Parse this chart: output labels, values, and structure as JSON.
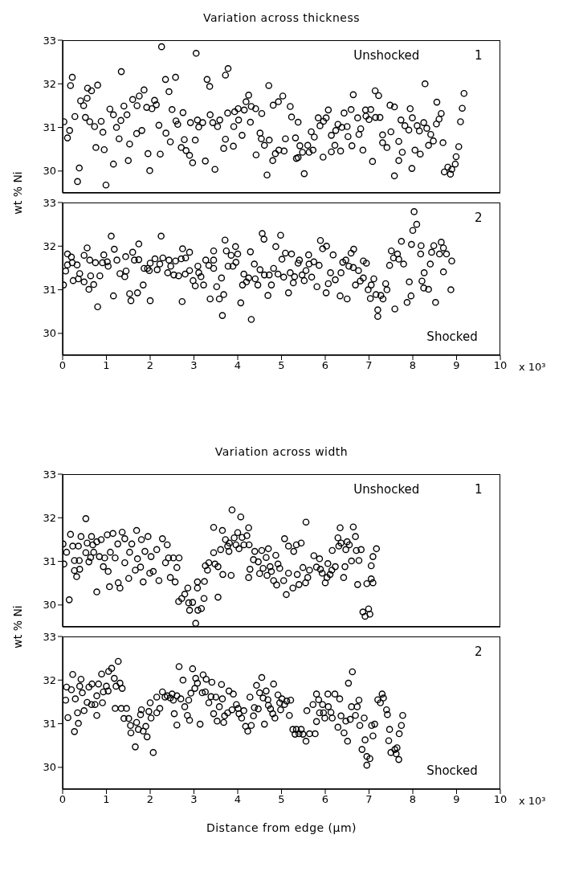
{
  "chart_data": [
    {
      "type": "scatter",
      "title": "Variation across thickness",
      "ylabel": "wt % Ni",
      "annotations": [
        "Unshocked",
        "1"
      ],
      "color": "#000000",
      "marker": "circle",
      "xlim": [
        0,
        10
      ],
      "ylim": [
        29.5,
        33
      ],
      "yticks": [
        30,
        31,
        32,
        33
      ],
      "tick_labels": "y",
      "x": [
        0.03,
        0.11,
        0.16,
        0.18,
        0.28,
        0.38,
        0.34,
        0.41,
        0.48,
        0.56,
        0.57,
        0.66,
        0.52,
        0.62,
        0.73,
        0.76,
        0.8,
        0.88,
        0.92,
        0.95,
        0.99,
        1.08,
        1.16,
        1.16,
        1.23,
        1.29,
        1.33,
        1.4,
        1.47,
        1.5,
        1.53,
        1.6,
        1.69,
        1.7,
        1.75,
        1.81,
        1.86,
        1.92,
        1.95,
        1.99,
        2.04,
        2.1,
        2.14,
        2.2,
        2.23,
        2.36,
        2.43,
        2.46,
        2.5,
        2.59,
        2.63,
        2.71,
        2.75,
        2.78,
        2.82,
        2.9,
        2.92,
        2.97,
        3.03,
        3.08,
        3.11,
        3.2,
        3.26,
        3.37,
        3.36,
        3.43,
        3.48,
        3.54,
        3.59,
        3.68,
        3.72,
        3.77,
        3.9,
        3.91,
        3.93,
        4.01,
        4.02,
        4.1,
        4.15,
        4.19,
        4.25,
        4.29,
        4.31,
        4.41,
        4.42,
        4.51,
        4.54,
        4.55,
        4.61,
        4.67,
        4.71,
        4.72,
        4.8,
        4.81,
        4.86,
        4.93,
        4.94,
        5.03,
        5.06,
        5.09,
        5.2,
        5.23,
        5.32,
        5.34,
        5.38,
        5.38,
        5.42,
        5.48,
        5.52,
        5.6,
        5.63,
        5.68,
        5.72,
        5.75,
        5.84,
        5.88,
        5.95,
        5.96,
        6.02,
        6.07,
        6.14,
        6.14,
        6.22,
        6.24,
        6.29,
        6.35,
        6.38,
        6.43,
        6.5,
        6.52,
        6.59,
        6.61,
        6.64,
        6.74,
        6.77,
        6.81,
        6.86,
        6.92,
        6.93,
        7.0,
        7.04,
        7.08,
        7.14,
        7.15,
        7.22,
        7.25,
        7.31,
        7.31,
        7.41,
        7.5,
        7.48,
        7.58,
        7.58,
        7.68,
        7.68,
        7.73,
        7.76,
        7.82,
        7.91,
        7.94,
        7.98,
        7.99,
        8.05,
        8.1,
        8.15,
        8.17,
        8.25,
        8.32,
        8.36,
        8.41,
        8.47,
        8.54,
        8.55,
        8.6,
        8.65,
        8.69,
        8.72,
        8.8,
        8.86,
        8.89,
        8.97,
        8.99,
        9.05,
        9.09,
        9.13,
        9.17,
        8.28,
        0.22,
        1.34,
        2.26,
        2.35,
        2.58,
        3.05,
        3.3,
        3.72,
        3.78
      ],
      "values": [
        31.13,
        30.76,
        30.93,
        31.96,
        31.25,
        30.07,
        29.76,
        31.61,
        31.5,
        31.67,
        31.9,
        31.84,
        31.23,
        31.13,
        31.02,
        30.54,
        31.97,
        31.14,
        30.89,
        30.49,
        29.68,
        31.42,
        31.29,
        30.16,
        31.0,
        30.74,
        31.16,
        31.49,
        31.29,
        30.24,
        30.62,
        31.64,
        30.86,
        31.5,
        31.72,
        30.93,
        31.86,
        31.46,
        30.4,
        30.01,
        31.43,
        31.62,
        31.52,
        31.05,
        30.39,
        30.87,
        31.82,
        30.67,
        31.41,
        31.15,
        31.07,
        30.54,
        31.34,
        30.72,
        30.47,
        30.36,
        31.11,
        30.19,
        30.71,
        31.17,
        31.01,
        31.11,
        30.23,
        31.29,
        31.94,
        31.11,
        30.04,
        31.02,
        31.17,
        30.52,
        30.73,
        31.33,
        30.57,
        31.02,
        31.36,
        31.43,
        31.17,
        30.82,
        31.4,
        31.59,
        31.74,
        31.12,
        31.48,
        31.43,
        30.37,
        30.87,
        30.74,
        31.32,
        30.59,
        29.91,
        31.96,
        30.71,
        30.24,
        31.51,
        30.4,
        31.59,
        30.48,
        31.72,
        30.46,
        30.74,
        31.48,
        31.24,
        30.76,
        30.29,
        31.12,
        30.31,
        30.58,
        30.43,
        29.94,
        30.59,
        30.43,
        30.9,
        30.48,
        30.78,
        31.22,
        31.04,
        30.32,
        31.14,
        31.22,
        31.4,
        30.82,
        30.44,
        30.59,
        30.93,
        31.07,
        30.46,
        31.0,
        31.33,
        31.02,
        30.79,
        31.41,
        30.58,
        31.75,
        31.22,
        30.84,
        30.97,
        30.48,
        31.4,
        31.26,
        31.18,
        31.41,
        30.22,
        31.84,
        31.23,
        31.73,
        31.23,
        30.83,
        30.65,
        30.54,
        30.9,
        31.51,
        31.47,
        29.89,
        30.68,
        30.24,
        31.17,
        30.43,
        31.04,
        30.94,
        31.43,
        30.06,
        31.22,
        30.48,
        31.04,
        30.92,
        30.39,
        31.11,
        30.98,
        30.59,
        30.84,
        30.69,
        31.08,
        31.58,
        31.19,
        31.32,
        30.65,
        29.98,
        30.09,
        29.93,
        30.04,
        30.16,
        30.33,
        30.56,
        31.13,
        31.44,
        31.78,
        32.0,
        32.15,
        32.28,
        32.85,
        32.1,
        32.15,
        32.7,
        32.1,
        32.2,
        32.35
      ]
    },
    {
      "type": "scatter",
      "annotations": [
        "2",
        "Shocked",
        "x 10³"
      ],
      "color": "#000000",
      "marker": "circle",
      "xlim": [
        0,
        10
      ],
      "xticks": [
        0,
        1,
        2,
        3,
        4,
        5,
        6,
        7,
        8,
        9,
        10
      ],
      "ylim": [
        29.5,
        33
      ],
      "yticks": [
        30,
        31,
        32,
        33
      ],
      "x": [
        0.02,
        0.07,
        0.11,
        0.11,
        0.2,
        0.24,
        0.22,
        0.33,
        0.36,
        0.39,
        0.49,
        0.49,
        0.56,
        0.6,
        0.64,
        0.62,
        0.71,
        0.75,
        0.8,
        0.85,
        0.91,
        0.94,
        1.02,
        1.04,
        1.11,
        1.16,
        1.18,
        1.24,
        1.31,
        1.42,
        1.45,
        1.44,
        1.53,
        1.56,
        1.6,
        1.64,
        1.71,
        1.74,
        1.74,
        1.84,
        1.86,
        1.94,
        2.0,
        1.98,
        2.0,
        2.11,
        2.16,
        2.22,
        2.25,
        2.29,
        2.4,
        2.43,
        2.47,
        2.54,
        2.58,
        2.65,
        2.71,
        2.73,
        2.74,
        2.8,
        2.81,
        2.9,
        2.9,
        2.98,
        3.03,
        3.09,
        3.11,
        3.16,
        3.22,
        3.27,
        3.34,
        3.37,
        3.45,
        3.45,
        3.45,
        3.52,
        3.58,
        3.63,
        3.65,
        3.68,
        3.71,
        3.74,
        3.78,
        3.85,
        3.89,
        3.95,
        3.96,
        4.0,
        4.07,
        4.11,
        4.14,
        4.2,
        4.25,
        4.29,
        4.31,
        4.38,
        4.4,
        4.46,
        4.51,
        4.56,
        4.6,
        4.61,
        4.69,
        4.72,
        4.77,
        4.82,
        4.87,
        4.92,
        4.98,
        5.01,
        5.05,
        5.09,
        5.16,
        5.2,
        5.23,
        5.27,
        5.3,
        5.38,
        5.41,
        5.47,
        5.52,
        5.56,
        5.62,
        5.63,
        5.69,
        5.74,
        5.81,
        5.86,
        5.89,
        5.94,
        6.03,
        6.02,
        6.07,
        6.12,
        6.18,
        6.23,
        6.34,
        6.36,
        6.4,
        6.47,
        6.5,
        6.54,
        6.59,
        6.65,
        6.64,
        6.69,
        6.76,
        6.8,
        6.87,
        6.87,
        6.94,
        6.98,
        7.03,
        7.05,
        7.11,
        7.16,
        7.2,
        7.2,
        7.27,
        7.32,
        7.38,
        7.41,
        7.47,
        7.51,
        7.56,
        7.59,
        7.65,
        7.68,
        7.74,
        7.79,
        7.87,
        7.92,
        7.96,
        7.97,
        8.0,
        8.03,
        8.09,
        8.18,
        8.19,
        8.21,
        8.25,
        8.26,
        8.36,
        8.4,
        8.43,
        8.48,
        8.52,
        8.61,
        8.65,
        8.7,
        8.7,
        8.77,
        8.87,
        8.89
      ],
      "values": [
        31.11,
        31.43,
        31.82,
        31.57,
        31.75,
        31.21,
        31.62,
        31.57,
        31.25,
        31.37,
        31.18,
        31.79,
        31.96,
        31.01,
        31.32,
        31.68,
        31.12,
        31.62,
        30.61,
        31.32,
        31.62,
        31.8,
        31.64,
        31.54,
        32.23,
        30.86,
        31.93,
        31.68,
        31.37,
        31.3,
        31.43,
        31.76,
        30.91,
        30.75,
        31.86,
        31.68,
        30.93,
        32.05,
        31.69,
        31.11,
        31.49,
        31.49,
        31.61,
        31.44,
        30.75,
        31.71,
        31.46,
        31.59,
        32.23,
        31.73,
        31.39,
        31.68,
        31.54,
        31.34,
        31.66,
        31.32,
        31.71,
        30.73,
        31.94,
        31.36,
        31.73,
        31.86,
        31.44,
        31.21,
        31.09,
        31.54,
        31.39,
        31.3,
        31.11,
        31.68,
        31.56,
        30.79,
        31.89,
        31.68,
        31.49,
        31.07,
        30.79,
        31.27,
        30.41,
        30.89,
        32.14,
        31.89,
        31.54,
        31.79,
        31.54,
        31.99,
        31.63,
        31.82,
        30.7,
        31.11,
        31.36,
        31.18,
        31.27,
        31.87,
        30.32,
        31.59,
        31.25,
        31.11,
        31.46,
        32.29,
        32.16,
        31.34,
        30.87,
        31.34,
        31.11,
        31.49,
        31.99,
        31.36,
        32.25,
        31.7,
        31.29,
        31.84,
        30.93,
        31.39,
        31.82,
        31.16,
        31.3,
        31.61,
        31.68,
        31.34,
        31.21,
        31.44,
        31.8,
        31.59,
        31.29,
        31.64,
        31.07,
        31.56,
        32.13,
        31.94,
        32.0,
        30.93,
        31.14,
        31.39,
        31.8,
        31.23,
        30.86,
        31.39,
        31.63,
        31.68,
        30.79,
        31.54,
        31.84,
        31.93,
        31.51,
        31.11,
        31.44,
        31.2,
        31.27,
        31.66,
        31.61,
        31.0,
        30.8,
        31.11,
        31.25,
        30.89,
        30.54,
        30.39,
        30.87,
        30.79,
        31.14,
        31.0,
        31.56,
        31.89,
        31.73,
        30.56,
        31.82,
        31.7,
        32.11,
        31.59,
        30.71,
        31.18,
        30.86,
        32.04,
        32.36,
        32.79,
        32.5,
        31.82,
        32.01,
        31.2,
        31.04,
        31.39,
        31.01,
        31.59,
        31.86,
        32.01,
        30.71,
        31.82,
        32.09,
        31.96,
        31.41,
        31.82,
        31.0,
        31.66
      ]
    },
    {
      "type": "scatter",
      "title": "Variation across width",
      "ylabel": "wt % Ni",
      "annotations": [
        "Unshocked",
        "1"
      ],
      "color": "#000000",
      "marker": "circle",
      "xlim": [
        0,
        10
      ],
      "ylim": [
        29.5,
        33
      ],
      "yticks": [
        30,
        31,
        32,
        33
      ],
      "tick_labels": "y",
      "x": [
        0.01,
        0.03,
        0.09,
        0.15,
        0.18,
        0.23,
        0.27,
        0.27,
        0.32,
        0.36,
        0.38,
        0.39,
        0.42,
        0.53,
        0.53,
        0.56,
        0.6,
        0.64,
        0.66,
        0.69,
        0.71,
        0.78,
        0.78,
        0.84,
        0.88,
        0.93,
        0.96,
        1.04,
        1.02,
        1.07,
        1.09,
        1.15,
        1.2,
        1.26,
        1.27,
        1.31,
        1.36,
        1.42,
        1.42,
        1.51,
        1.53,
        1.58,
        1.66,
        1.69,
        1.71,
        1.78,
        1.8,
        1.84,
        1.88,
        1.95,
        1.99,
        2.02,
        2.07,
        2.15,
        2.2,
        2.28,
        2.35,
        2.39,
        2.42,
        2.46,
        2.53,
        2.57,
        2.61,
        2.66,
        2.65,
        2.72,
        2.79,
        2.86,
        2.88,
        2.9,
        2.97,
        3.04,
        3.08,
        3.08,
        3.09,
        3.17,
        3.23,
        3.24,
        3.26,
        3.31,
        3.34,
        3.45,
        3.48,
        3.45,
        3.55,
        3.55,
        3.61,
        3.65,
        3.66,
        3.72,
        3.77,
        3.8,
        3.81,
        3.85,
        3.87,
        3.92,
        3.96,
        4.0,
        4.03,
        4.07,
        4.1,
        4.14,
        4.21,
        4.25,
        4.26,
        4.25,
        4.28,
        4.36,
        4.39,
        4.47,
        4.5,
        4.55,
        4.58,
        4.65,
        4.67,
        4.7,
        4.74,
        4.77,
        4.82,
        4.87,
        4.89,
        4.92,
        4.96,
        5.05,
        5.07,
        5.11,
        5.16,
        5.16,
        5.26,
        5.28,
        5.34,
        5.36,
        5.4,
        5.45,
        5.49,
        5.55,
        5.56,
        5.6,
        5.64,
        5.74,
        5.8,
        5.87,
        5.89,
        5.93,
        6.0,
        6.04,
        6.06,
        6.11,
        6.15,
        6.16,
        6.23,
        6.29,
        6.31,
        6.34,
        6.36,
        6.42,
        6.45,
        6.47,
        6.5,
        6.55,
        6.6,
        6.64,
        6.69,
        6.71,
        6.74,
        6.77,
        6.82,
        6.86,
        6.91,
        6.95,
        6.99,
        7.02,
        7.05,
        7.05,
        7.09,
        7.09,
        7.17
      ],
      "values": [
        31.4,
        30.94,
        31.21,
        30.12,
        31.62,
        31.35,
        31.02,
        30.79,
        30.65,
        31.35,
        31.02,
        30.82,
        31.57,
        31.98,
        31.2,
        31.42,
        30.99,
        31.09,
        31.57,
        31.38,
        31.21,
        31.45,
        30.3,
        31.11,
        31.5,
        30.88,
        31.08,
        30.77,
        31.61,
        30.42,
        31.21,
        31.64,
        31.08,
        31.4,
        30.51,
        30.39,
        31.67,
        31.52,
        30.97,
        30.61,
        31.21,
        31.4,
        30.8,
        31.71,
        31.06,
        30.87,
        31.5,
        30.53,
        31.23,
        31.57,
        30.73,
        31.11,
        30.77,
        31.27,
        30.56,
        31.52,
        30.97,
        31.38,
        31.08,
        30.63,
        31.08,
        30.53,
        30.86,
        31.08,
        30.08,
        30.15,
        30.25,
        30.39,
        30.05,
        29.88,
        30.06,
        29.58,
        30.53,
        30.39,
        29.88,
        29.92,
        30.15,
        30.54,
        30.9,
        30.8,
        30.97,
        31.2,
        30.94,
        31.78,
        30.88,
        30.18,
        31.27,
        31.71,
        30.7,
        31.5,
        31.35,
        31.23,
        31.42,
        30.68,
        32.18,
        31.54,
        31.38,
        31.66,
        31.29,
        32.02,
        31.55,
        31.38,
        31.59,
        31.77,
        31.38,
        30.63,
        30.82,
        31.04,
        31.23,
        30.99,
        30.72,
        31.25,
        30.84,
        31.09,
        30.68,
        31.29,
        30.88,
        30.77,
        30.56,
        31.14,
        30.46,
        30.94,
        30.84,
        30.56,
        31.52,
        30.24,
        30.73,
        31.35,
        30.39,
        31.23,
        31.38,
        30.7,
        30.47,
        31.42,
        30.86,
        30.51,
        31.9,
        30.63,
        30.8,
        31.13,
        30.87,
        31.06,
        30.82,
        30.73,
        30.51,
        30.63,
        30.95,
        30.7,
        30.8,
        31.25,
        30.88,
        31.54,
        31.35,
        31.77,
        31.42,
        30.63,
        30.88,
        31.27,
        31.45,
        31.38,
        31.01,
        31.79,
        31.57,
        31.25,
        30.47,
        31.02,
        31.27,
        29.84,
        29.74,
        30.49,
        29.91,
        29.79,
        30.6,
        30.9,
        31.11,
        30.51,
        31.29
      ]
    },
    {
      "type": "scatter",
      "xlabel": "Distance from edge (µm)",
      "annotations": [
        "2",
        "Shocked",
        "x 10³"
      ],
      "color": "#000000",
      "marker": "circle",
      "xlim": [
        0,
        10
      ],
      "xticks": [
        0,
        1,
        2,
        3,
        4,
        5,
        6,
        7,
        8,
        9,
        10
      ],
      "ylim": [
        29.5,
        33
      ],
      "yticks": [
        30,
        31,
        32,
        33
      ],
      "x": [
        0.07,
        0.09,
        0.12,
        0.2,
        0.23,
        0.27,
        0.29,
        0.34,
        0.36,
        0.39,
        0.42,
        0.45,
        0.49,
        0.56,
        0.6,
        0.66,
        0.67,
        0.74,
        0.78,
        0.78,
        0.82,
        0.89,
        0.91,
        0.93,
        1.0,
        1.04,
        1.05,
        1.12,
        1.18,
        1.2,
        1.22,
        1.27,
        1.31,
        1.34,
        1.36,
        1.4,
        1.46,
        1.51,
        1.55,
        1.56,
        1.66,
        1.69,
        1.73,
        1.78,
        1.8,
        1.84,
        1.9,
        1.93,
        1.97,
        2.02,
        2.0,
        2.07,
        2.15,
        2.15,
        2.22,
        2.28,
        2.34,
        2.39,
        2.46,
        2.5,
        2.53,
        2.55,
        2.61,
        2.61,
        2.66,
        2.7,
        2.75,
        2.79,
        2.85,
        2.88,
        2.9,
        2.93,
        2.97,
        3.02,
        3.04,
        3.08,
        3.14,
        3.19,
        3.21,
        3.26,
        3.28,
        3.34,
        3.41,
        3.39,
        3.45,
        3.5,
        3.53,
        3.58,
        3.63,
        3.65,
        3.68,
        3.7,
        3.77,
        3.8,
        3.87,
        3.9,
        3.97,
        4.01,
        4.03,
        4.09,
        4.14,
        4.18,
        4.23,
        4.28,
        4.31,
        4.36,
        4.38,
        4.43,
        4.47,
        4.5,
        4.55,
        4.58,
        4.61,
        4.65,
        4.69,
        4.7,
        4.75,
        4.8,
        4.82,
        4.85,
        4.92,
        4.96,
        4.98,
        5.01,
        5.07,
        5.12,
        5.18,
        5.21,
        5.26,
        5.31,
        5.34,
        5.4,
        5.45,
        5.49,
        5.56,
        5.58,
        5.64,
        5.72,
        5.77,
        5.8,
        5.8,
        5.85,
        5.87,
        5.94,
        5.96,
        5.99,
        6.06,
        6.07,
        6.13,
        6.16,
        6.22,
        6.29,
        6.33,
        6.36,
        6.43,
        6.47,
        6.51,
        6.53,
        6.57,
        6.6,
        6.62,
        6.69,
        6.73,
        6.77,
        6.79,
        6.84,
        6.89,
        6.91,
        6.95,
        6.95,
        7.02,
        7.06,
        7.09,
        7.13,
        7.2,
        7.26,
        7.3,
        7.33,
        7.4,
        7.42,
        7.45,
        7.47,
        7.5,
        7.59,
        7.62,
        7.64,
        7.68,
        7.69,
        7.74,
        7.77
      ],
      "values": [
        31.54,
        31.84,
        31.14,
        31.78,
        32.13,
        30.82,
        31.57,
        31.25,
        31.01,
        31.86,
        32.02,
        31.71,
        31.3,
        31.49,
        31.84,
        31.44,
        31.91,
        31.44,
        31.64,
        31.19,
        31.91,
        32.14,
        31.48,
        31.73,
        31.86,
        31.75,
        32.2,
        32.27,
        32.04,
        31.35,
        31.86,
        32.43,
        31.93,
        31.35,
        31.81,
        31.12,
        31.35,
        31.12,
        30.96,
        30.79,
        30.47,
        31.03,
        30.87,
        31.21,
        31.32,
        30.83,
        30.94,
        30.7,
        31.28,
        31.13,
        31.48,
        30.34,
        31.61,
        31.25,
        31.35,
        31.73,
        31.61,
        31.64,
        31.59,
        31.68,
        31.54,
        31.23,
        31.64,
        30.97,
        32.31,
        31.57,
        32.0,
        31.39,
        31.19,
        31.54,
        31.08,
        31.7,
        32.26,
        31.81,
        32.04,
        31.93,
        30.99,
        31.71,
        32.12,
        31.73,
        32.02,
        31.48,
        31.95,
        31.62,
        31.23,
        31.61,
        31.06,
        31.39,
        31.9,
        31.57,
        31.03,
        31.18,
        31.25,
        31.75,
        31.32,
        31.68,
        31.44,
        31.35,
        31.23,
        31.13,
        31.3,
        30.94,
        30.83,
        31.61,
        30.96,
        31.18,
        31.37,
        31.88,
        31.34,
        31.71,
        32.06,
        31.59,
        30.99,
        31.75,
        31.55,
        31.42,
        31.34,
        31.23,
        31.91,
        31.13,
        31.66,
        31.48,
        31.32,
        31.57,
        31.44,
        31.52,
        31.19,
        31.54,
        30.87,
        30.76,
        30.87,
        30.77,
        30.87,
        30.76,
        30.6,
        31.3,
        30.77,
        31.44,
        30.77,
        31.05,
        31.68,
        31.55,
        31.25,
        31.44,
        31.25,
        31.13,
        31.68,
        31.39,
        31.26,
        31.13,
        31.68,
        30.92,
        31.57,
        31.18,
        30.79,
        31.06,
        30.6,
        31.93,
        31.1,
        31.39,
        32.19,
        31.19,
        31.39,
        31.54,
        30.96,
        30.41,
        31.13,
        30.63,
        30.25,
        30.05,
        30.2,
        30.96,
        30.72,
        30.99,
        31.55,
        31.48,
        31.68,
        31.59,
        31.32,
        31.21,
        30.61,
        30.87,
        30.34,
        30.41,
        30.31,
        30.45,
        30.18,
        30.77,
        30.96,
        31.19
      ]
    }
  ]
}
